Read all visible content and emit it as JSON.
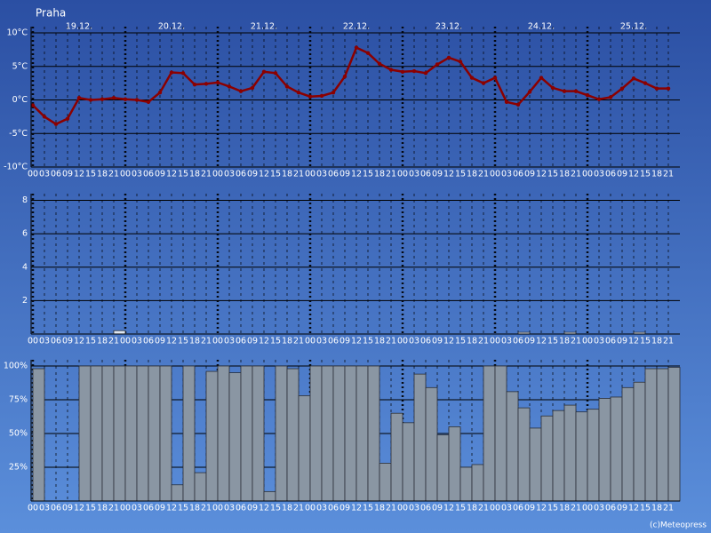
{
  "title": "Praha",
  "footer": "(c)Meteopress",
  "chart_data": [
    {
      "type": "line",
      "color": "#8b0000",
      "day_labels": [
        "19.12.",
        "20.12.",
        "21.12.",
        "22.12.",
        "23.12.",
        "24.12.",
        "25.12."
      ],
      "categories": [
        "00",
        "03",
        "06",
        "09",
        "12",
        "15",
        "18",
        "21",
        "00",
        "03",
        "06",
        "09",
        "12",
        "15",
        "18",
        "21",
        "00",
        "03",
        "06",
        "09",
        "12",
        "15",
        "18",
        "21",
        "00",
        "03",
        "06",
        "09",
        "12",
        "15",
        "18",
        "21",
        "00",
        "03",
        "06",
        "09",
        "12",
        "15",
        "18",
        "21",
        "00",
        "03",
        "06",
        "09",
        "12",
        "15",
        "18",
        "21",
        "00",
        "03",
        "06",
        "09",
        "12",
        "15",
        "18",
        "21"
      ],
      "values": [
        -0.8,
        -2.5,
        -3.6,
        -2.8,
        0.3,
        0,
        0.1,
        0.3,
        0.1,
        0,
        -0.3,
        1.1,
        4.1,
        4.0,
        2.3,
        2.4,
        2.6,
        2.0,
        1.3,
        1.8,
        4.2,
        4.0,
        2.0,
        1.1,
        0.5,
        0.6,
        1.1,
        3.5,
        7.8,
        7.0,
        5.4,
        4.5,
        4.2,
        4.3,
        4.0,
        5.3,
        6.3,
        5.7,
        3.3,
        2.5,
        3.3,
        -0.3,
        -0.7,
        1.2,
        3.3,
        1.8,
        1.3,
        1.3,
        0.7,
        0.1,
        0.4,
        1.7,
        3.2,
        2.5,
        1.7,
        1.7
      ],
      "ylim": [
        -10,
        10
      ],
      "yticks": [
        {
          "value": 10,
          "label": "10°C"
        },
        {
          "value": 5,
          "label": "5°C"
        },
        {
          "value": 0,
          "label": "0°C"
        },
        {
          "value": -5,
          "label": "-5°C"
        },
        {
          "value": -10,
          "label": "-10°C"
        }
      ],
      "grid": true
    },
    {
      "type": "bar",
      "color": "#dfe8f3",
      "categories": [
        "00",
        "03",
        "06",
        "09",
        "12",
        "15",
        "18",
        "21",
        "00",
        "03",
        "06",
        "09",
        "12",
        "15",
        "18",
        "21",
        "00",
        "03",
        "06",
        "09",
        "12",
        "15",
        "18",
        "21",
        "00",
        "03",
        "06",
        "09",
        "12",
        "15",
        "18",
        "21",
        "00",
        "03",
        "06",
        "09",
        "12",
        "15",
        "18",
        "21",
        "00",
        "03",
        "06",
        "09",
        "12",
        "15",
        "18",
        "21",
        "00",
        "03",
        "06",
        "09",
        "12",
        "15",
        "18",
        "21"
      ],
      "values": [
        0,
        0,
        0,
        0,
        0,
        0,
        0,
        0.2,
        0,
        0,
        0,
        0,
        0,
        0,
        0,
        0,
        0,
        0,
        0,
        0,
        0,
        0,
        0,
        0,
        0,
        0,
        0,
        0,
        0,
        0,
        0,
        0,
        0,
        0,
        0,
        0,
        0,
        0,
        0,
        0,
        0,
        0,
        0.1,
        0,
        0,
        0,
        0.1,
        0,
        0,
        0,
        0,
        0,
        0.1,
        0,
        0,
        0
      ],
      "ylim": [
        0,
        8.4
      ],
      "yticks": [
        2,
        4,
        6,
        8
      ],
      "grid": true
    },
    {
      "type": "bar",
      "color": "#8a96a3",
      "categories": [
        "00",
        "03",
        "06",
        "09",
        "12",
        "15",
        "18",
        "21",
        "00",
        "03",
        "06",
        "09",
        "12",
        "15",
        "18",
        "21",
        "00",
        "03",
        "06",
        "09",
        "12",
        "15",
        "18",
        "21",
        "00",
        "03",
        "06",
        "09",
        "12",
        "15",
        "18",
        "21",
        "00",
        "03",
        "06",
        "09",
        "12",
        "15",
        "18",
        "21",
        "00",
        "03",
        "06",
        "09",
        "12",
        "15",
        "18",
        "21",
        "00",
        "03",
        "06",
        "09",
        "12",
        "15",
        "18",
        "21"
      ],
      "values": [
        98,
        0,
        0,
        0,
        100,
        100,
        100,
        100,
        100,
        100,
        100,
        100,
        12,
        100,
        21,
        96,
        100,
        95,
        100,
        100,
        7,
        100,
        98,
        78,
        100,
        100,
        100,
        100,
        100,
        100,
        28,
        65,
        58,
        94,
        84,
        49,
        55,
        25,
        27,
        100,
        100,
        81,
        69,
        54,
        63,
        67,
        71,
        66,
        68,
        76,
        77,
        84,
        88,
        98,
        98,
        99
      ],
      "ylim": [
        0,
        100
      ],
      "yticks": [
        {
          "value": 100,
          "label": "100%"
        },
        {
          "value": 75,
          "label": "75%"
        },
        {
          "value": 50,
          "label": "50%"
        },
        {
          "value": 25,
          "label": "25%"
        }
      ],
      "grid": true
    }
  ]
}
